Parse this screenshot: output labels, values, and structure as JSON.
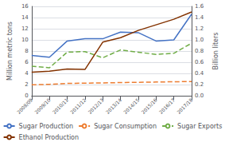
{
  "chart_data": {
    "type": "line",
    "categories": [
      "2008/09",
      "2009/10",
      "2010/11",
      "2011/12",
      "2012/13",
      "2013/14",
      "2014/15",
      "2015/16",
      "2016/17",
      "2017/18"
    ],
    "series": [
      {
        "name": "Sugar Production",
        "color": "#4472C4",
        "line_style": "solid",
        "values": [
          7.2,
          6.9,
          9.8,
          10.2,
          10.2,
          11.4,
          11.3,
          9.8,
          10.0,
          14.6
        ]
      },
      {
        "name": "Sugar Consumption",
        "color": "#ED7D31",
        "line_style": "dashed",
        "values": [
          1.95,
          2.05,
          2.2,
          2.25,
          2.3,
          2.35,
          2.4,
          2.45,
          2.5,
          2.55
        ]
      },
      {
        "name": "Sugar Exports",
        "color": "#70AD47",
        "line_style": "dashed",
        "values": [
          5.3,
          5.0,
          7.8,
          7.9,
          6.8,
          8.2,
          7.8,
          7.4,
          7.6,
          9.4
        ]
      },
      {
        "name": "Ethanol Production",
        "color": "#833200",
        "line_style": "solid",
        "axis": "y2",
        "values": [
          0.42,
          0.44,
          0.48,
          0.47,
          0.96,
          1.04,
          1.17,
          1.27,
          1.37,
          1.5
        ]
      }
    ],
    "ylabel": "Million metric tons",
    "y2label": "Billion liters",
    "ylim": [
      0,
      16
    ],
    "yticks": [
      0,
      2,
      4,
      6,
      8,
      10,
      12,
      14,
      16
    ],
    "y2lim": [
      0.0,
      1.6
    ],
    "y2ticks": [
      {
        "value": 0,
        "label": "0.0"
      },
      0.2,
      0.4,
      0.6,
      0.8,
      {
        "value": 1,
        "label": "1.0"
      },
      1.2,
      1.4,
      1.6
    ],
    "grid": true,
    "legend": "bottom"
  }
}
